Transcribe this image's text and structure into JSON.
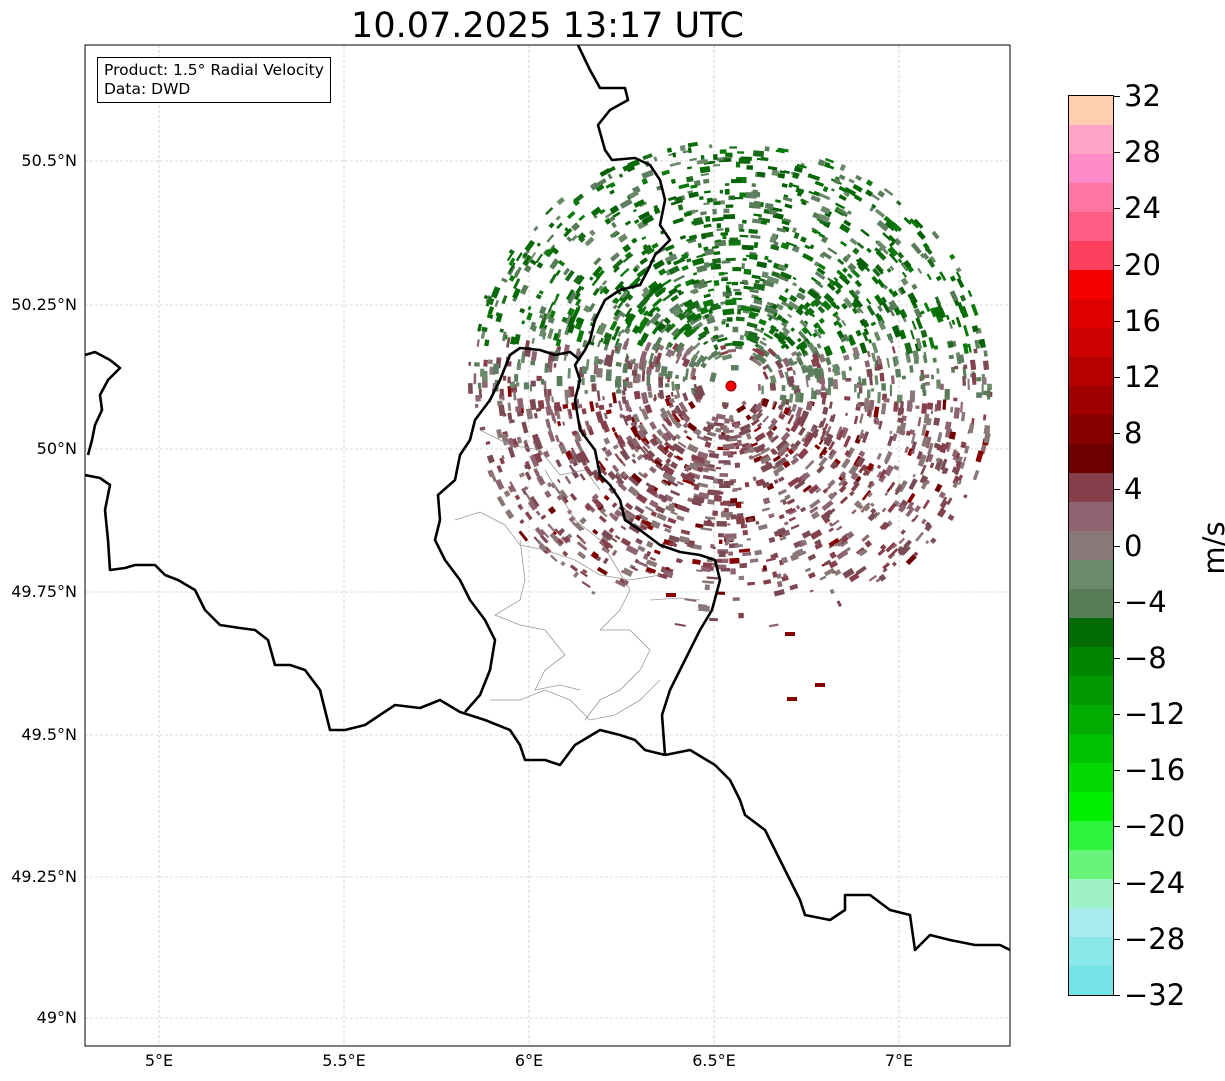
{
  "title": "10.07.2025 13:17 UTC",
  "legend": {
    "line1": "Product: 1.5° Radial Velocity",
    "line2": "Data: DWD"
  },
  "x_ticks": [
    "5°E",
    "5.5°E",
    "6°E",
    "6.5°E",
    "7°E"
  ],
  "y_ticks": [
    "50.5°N",
    "50.25°N",
    "50°N",
    "49.75°N",
    "49.5°N",
    "49.25°N",
    "49°N"
  ],
  "colorbar": {
    "unit": "m/s",
    "ticks": [
      "−32",
      "−28",
      "−24",
      "−20",
      "−16",
      "−12",
      "−8",
      "−4",
      "0",
      "4",
      "8",
      "12",
      "16",
      "20",
      "24",
      "28",
      "32"
    ],
    "colors": [
      "#74e3e6",
      "#89e7ea",
      "#a8eaee",
      "#9ef2c5",
      "#66f57a",
      "#2ef53c",
      "#00f000",
      "#00d800",
      "#00c200",
      "#02ad02",
      "#019a01",
      "#018601",
      "#036d03",
      "#577c57",
      "#6a8a6a",
      "#8a7878",
      "#8e6470",
      "#85404c",
      "#6e0000",
      "#860000",
      "#9e0000",
      "#b60000",
      "#cc0000",
      "#e00000",
      "#f70000",
      "#ff3f5e",
      "#ff5d85",
      "#ff75a1",
      "#ff8bc8",
      "#ffa4c6",
      "#ffcfb0"
    ]
  },
  "radar_site_color": "#ff0000"
}
